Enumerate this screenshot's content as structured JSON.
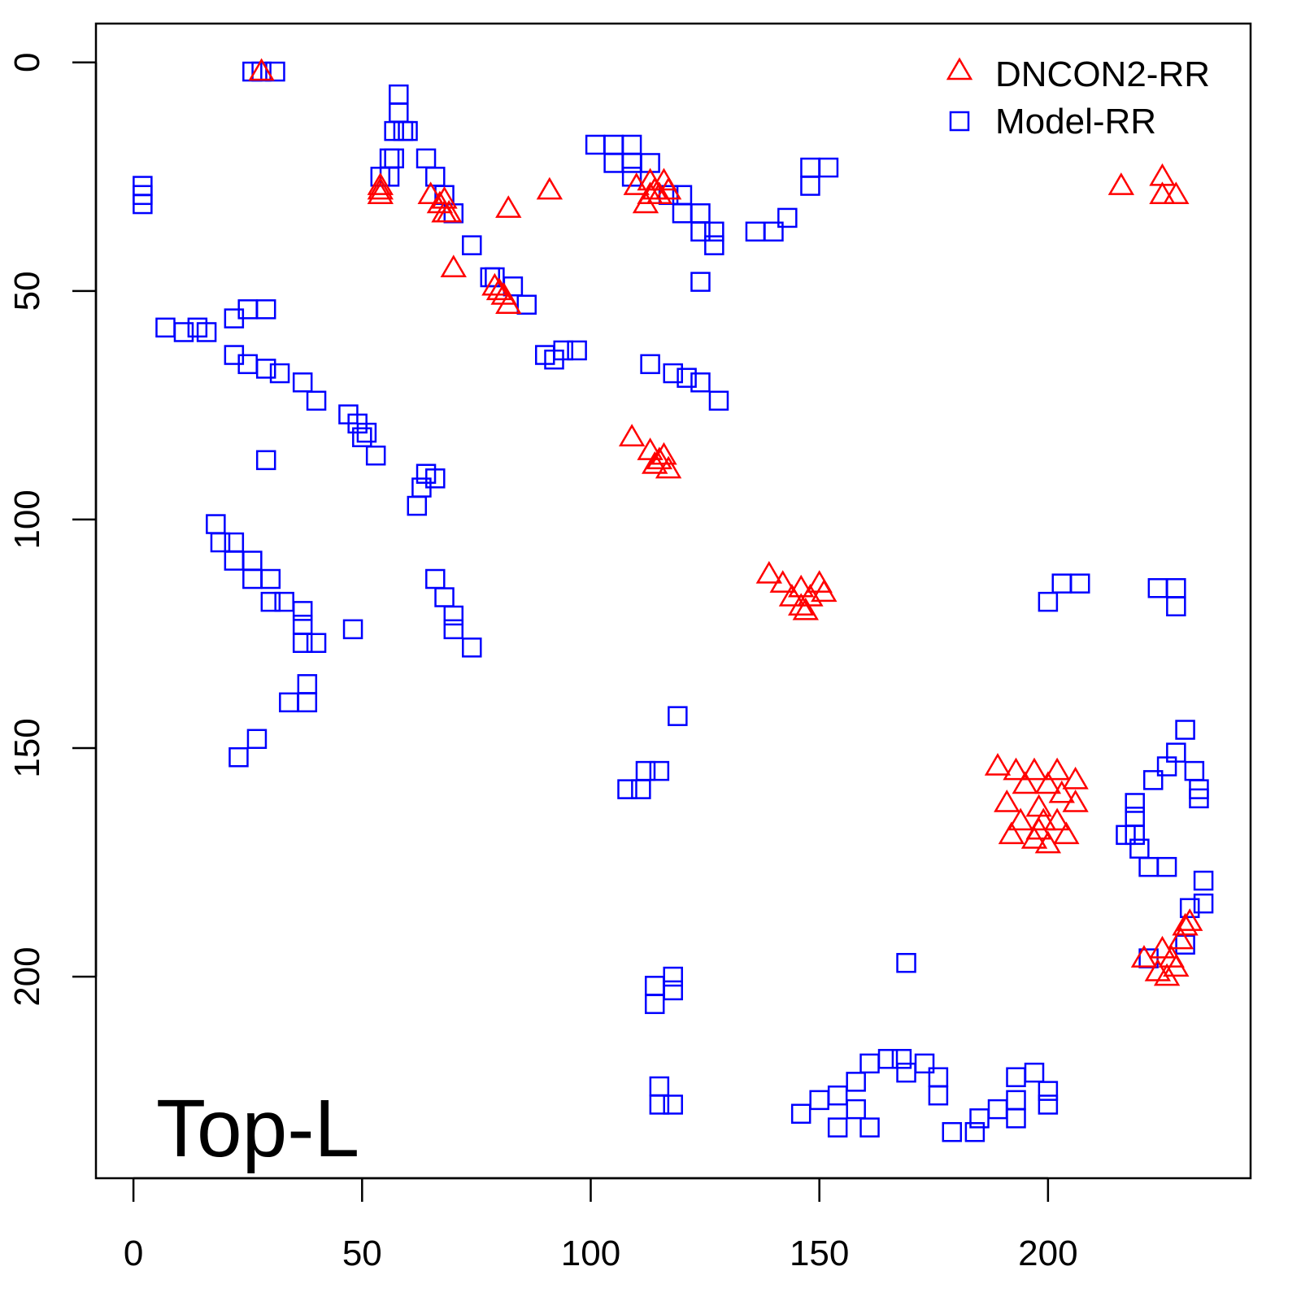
{
  "chart_data": {
    "type": "scatter",
    "title": "",
    "annotation": "Top-L",
    "xlabel": "",
    "ylabel": "",
    "xlim": [
      -8.2,
      244.3
    ],
    "ylim": [
      -8.5,
      244.1
    ],
    "y_inverted": true,
    "grid": false,
    "x_ticks": [
      0,
      50,
      100,
      150,
      200
    ],
    "y_ticks": [
      0,
      50,
      100,
      150,
      200
    ],
    "legend": {
      "position": "top-right",
      "entries": [
        "DNCON2-RR",
        "Model-RR"
      ]
    },
    "series": [
      {
        "name": "DNCON2-RR",
        "marker": "triangle",
        "color": "#ff0000",
        "points": [
          [
            28,
            2
          ],
          [
            54,
            27
          ],
          [
            54,
            29
          ],
          [
            54,
            28
          ],
          [
            65,
            29
          ],
          [
            68,
            30
          ],
          [
            69,
            33
          ],
          [
            68,
            33
          ],
          [
            67,
            31
          ],
          [
            82,
            32
          ],
          [
            91,
            28
          ],
          [
            70,
            45
          ],
          [
            79,
            49
          ],
          [
            80,
            50
          ],
          [
            82,
            53
          ],
          [
            81,
            51
          ],
          [
            110,
            27
          ],
          [
            113,
            26
          ],
          [
            116,
            26
          ],
          [
            112,
            31
          ],
          [
            117,
            28
          ],
          [
            114,
            28
          ],
          [
            115,
            29
          ],
          [
            113,
            29
          ],
          [
            109,
            82
          ],
          [
            113,
            85
          ],
          [
            116,
            86
          ],
          [
            117,
            89
          ],
          [
            114,
            88
          ],
          [
            115,
            87
          ],
          [
            139,
            112
          ],
          [
            142,
            114
          ],
          [
            146,
            115
          ],
          [
            150,
            114
          ],
          [
            147,
            120
          ],
          [
            144,
            117
          ],
          [
            148,
            117
          ],
          [
            146,
            119
          ],
          [
            151,
            116
          ],
          [
            189,
            154
          ],
          [
            193,
            155
          ],
          [
            197,
            155
          ],
          [
            202,
            155
          ],
          [
            206,
            157
          ],
          [
            191,
            162
          ],
          [
            198,
            163
          ],
          [
            206,
            162
          ],
          [
            192,
            169
          ],
          [
            197,
            170
          ],
          [
            200,
            171
          ],
          [
            204,
            169
          ],
          [
            195,
            158
          ],
          [
            200,
            158
          ],
          [
            203,
            160
          ],
          [
            194,
            166
          ],
          [
            199,
            166
          ],
          [
            202,
            166
          ],
          [
            198,
            168
          ],
          [
            221,
            196
          ],
          [
            224,
            199
          ],
          [
            228,
            198
          ],
          [
            230,
            189
          ],
          [
            231,
            188
          ],
          [
            226,
            200
          ],
          [
            225,
            194
          ],
          [
            227,
            196
          ],
          [
            229,
            192
          ],
          [
            216,
            27
          ],
          [
            225,
            25
          ],
          [
            228,
            29
          ],
          [
            225,
            29
          ]
        ]
      },
      {
        "name": "Model-RR",
        "marker": "square",
        "color": "#0000ff",
        "points": [
          [
            26,
            2
          ],
          [
            28,
            2
          ],
          [
            31,
            2
          ],
          [
            2,
            27
          ],
          [
            2,
            31
          ],
          [
            2,
            29
          ],
          [
            58,
            7
          ],
          [
            58,
            11
          ],
          [
            59,
            15
          ],
          [
            57,
            15
          ],
          [
            60,
            15
          ],
          [
            56,
            21
          ],
          [
            57,
            21
          ],
          [
            54,
            25
          ],
          [
            56,
            25
          ],
          [
            64,
            21
          ],
          [
            66,
            25
          ],
          [
            68,
            29
          ],
          [
            70,
            33
          ],
          [
            74,
            40
          ],
          [
            101,
            18
          ],
          [
            105,
            18
          ],
          [
            109,
            18
          ],
          [
            105,
            22
          ],
          [
            109,
            22
          ],
          [
            113,
            22
          ],
          [
            109,
            25
          ],
          [
            117,
            29
          ],
          [
            120,
            29
          ],
          [
            124,
            33
          ],
          [
            127,
            37
          ],
          [
            120,
            33
          ],
          [
            124,
            37
          ],
          [
            127,
            40
          ],
          [
            136,
            37
          ],
          [
            140,
            37
          ],
          [
            143,
            34
          ],
          [
            148,
            23
          ],
          [
            152,
            23
          ],
          [
            148,
            27
          ],
          [
            124,
            48
          ],
          [
            78,
            47
          ],
          [
            79,
            47
          ],
          [
            83,
            49
          ],
          [
            86,
            53
          ],
          [
            90,
            64
          ],
          [
            94,
            63
          ],
          [
            97,
            63
          ],
          [
            92,
            65
          ],
          [
            113,
            66
          ],
          [
            118,
            68
          ],
          [
            121,
            69
          ],
          [
            124,
            70
          ],
          [
            128,
            74
          ],
          [
            7,
            58
          ],
          [
            11,
            59
          ],
          [
            14,
            58
          ],
          [
            16,
            59
          ],
          [
            22,
            56
          ],
          [
            25,
            54
          ],
          [
            29,
            54
          ],
          [
            22,
            64
          ],
          [
            25,
            66
          ],
          [
            29,
            67
          ],
          [
            32,
            68
          ],
          [
            37,
            70
          ],
          [
            40,
            74
          ],
          [
            29,
            87
          ],
          [
            47,
            77
          ],
          [
            49,
            79
          ],
          [
            51,
            81
          ],
          [
            53,
            86
          ],
          [
            50,
            82
          ],
          [
            62,
            97
          ],
          [
            64,
            90
          ],
          [
            66,
            91
          ],
          [
            63,
            93
          ],
          [
            18,
            101
          ],
          [
            19,
            105
          ],
          [
            22,
            105
          ],
          [
            22,
            109
          ],
          [
            26,
            109
          ],
          [
            26,
            113
          ],
          [
            30,
            113
          ],
          [
            30,
            118
          ],
          [
            33,
            118
          ],
          [
            37,
            120
          ],
          [
            37,
            123
          ],
          [
            40,
            127
          ],
          [
            37,
            127
          ],
          [
            48,
            124
          ],
          [
            66,
            113
          ],
          [
            68,
            117
          ],
          [
            70,
            121
          ],
          [
            70,
            124
          ],
          [
            74,
            128
          ],
          [
            34,
            140
          ],
          [
            38,
            136
          ],
          [
            38,
            140
          ],
          [
            23,
            152
          ],
          [
            27,
            148
          ],
          [
            119,
            143
          ],
          [
            112,
            155
          ],
          [
            115,
            155
          ],
          [
            108,
            159
          ],
          [
            111,
            159
          ],
          [
            114,
            202
          ],
          [
            114,
            206
          ],
          [
            118,
            200
          ],
          [
            118,
            203
          ],
          [
            115,
            224
          ],
          [
            115,
            228
          ],
          [
            118,
            228
          ],
          [
            169,
            197
          ],
          [
            146,
            230
          ],
          [
            150,
            227
          ],
          [
            154,
            226
          ],
          [
            158,
            223
          ],
          [
            161,
            219
          ],
          [
            165,
            218
          ],
          [
            168,
            218
          ],
          [
            169,
            221
          ],
          [
            173,
            219
          ],
          [
            176,
            222
          ],
          [
            176,
            226
          ],
          [
            154,
            233
          ],
          [
            161,
            233
          ],
          [
            158,
            229
          ],
          [
            179,
            234
          ],
          [
            184,
            234
          ],
          [
            185,
            231
          ],
          [
            189,
            229
          ],
          [
            193,
            222
          ],
          [
            193,
            227
          ],
          [
            197,
            221
          ],
          [
            200,
            225
          ],
          [
            200,
            228
          ],
          [
            193,
            231
          ],
          [
            200,
            118
          ],
          [
            203,
            114
          ],
          [
            207,
            114
          ],
          [
            224,
            115
          ],
          [
            228,
            115
          ],
          [
            228,
            119
          ],
          [
            230,
            146
          ],
          [
            228,
            151
          ],
          [
            226,
            154
          ],
          [
            223,
            157
          ],
          [
            219,
            162
          ],
          [
            219,
            165
          ],
          [
            219,
            169
          ],
          [
            217,
            169
          ],
          [
            220,
            172
          ],
          [
            222,
            176
          ],
          [
            226,
            176
          ],
          [
            232,
            155
          ],
          [
            233,
            159
          ],
          [
            233,
            161
          ],
          [
            234,
            179
          ],
          [
            234,
            184
          ],
          [
            231,
            185
          ],
          [
            230,
            193
          ],
          [
            222,
            196
          ]
        ]
      }
    ]
  }
}
